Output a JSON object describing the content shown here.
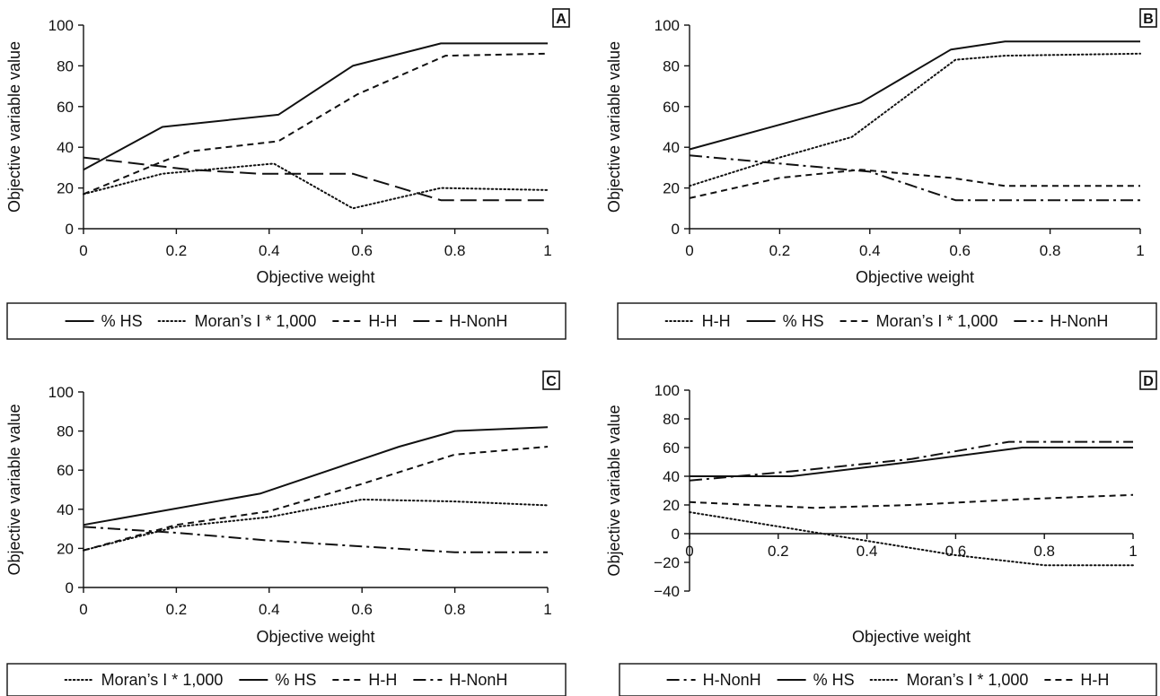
{
  "chart_data": [
    {
      "type": "line",
      "panel_label": "A",
      "xlabel": "Objective weight",
      "ylabel": "Objective variable value",
      "xlim": [
        0,
        1
      ],
      "ylim": [
        0,
        100
      ],
      "xticks": [
        0,
        0.2,
        0.4,
        0.6,
        0.8,
        1
      ],
      "xtick_labels": [
        "0",
        "0.2",
        "0.4",
        "0.6",
        "0.8",
        "1"
      ],
      "yticks": [
        0,
        20,
        40,
        60,
        80,
        100
      ],
      "ytick_labels": [
        "0",
        "20",
        "40",
        "60",
        "80",
        "100"
      ],
      "legend_position": "bottom",
      "series": [
        {
          "name": "% HS",
          "style": "solid",
          "x": [
            0,
            0.17,
            0.42,
            0.58,
            0.77,
            1
          ],
          "values": [
            29,
            50,
            56,
            80,
            91,
            91
          ]
        },
        {
          "name": "Moran’s I * 1,000",
          "style": "dotted",
          "x": [
            0,
            0.17,
            0.41,
            0.58,
            0.77,
            1
          ],
          "values": [
            17,
            27,
            32,
            10,
            20,
            19
          ]
        },
        {
          "name": "H-H",
          "style": "dashed",
          "x": [
            0,
            0.17,
            0.23,
            0.42,
            0.59,
            0.78,
            1
          ],
          "values": [
            17,
            33,
            38,
            43,
            66,
            85,
            86
          ]
        },
        {
          "name": "H-NonH",
          "style": "longdash",
          "x": [
            0,
            0.23,
            0.38,
            0.58,
            0.77,
            1
          ],
          "values": [
            35,
            29,
            27,
            27,
            14,
            14
          ]
        }
      ]
    },
    {
      "type": "line",
      "panel_label": "B",
      "xlabel": "Objective weight",
      "ylabel": "Objective variable value",
      "xlim": [
        0,
        1
      ],
      "ylim": [
        0,
        100
      ],
      "xticks": [
        0,
        0.2,
        0.4,
        0.6,
        0.8,
        1
      ],
      "xtick_labels": [
        "0",
        "0.2",
        "0.4",
        "0.6",
        "0.8",
        "1"
      ],
      "yticks": [
        0,
        20,
        40,
        60,
        80,
        100
      ],
      "ytick_labels": [
        "0",
        "20",
        "40",
        "60",
        "80",
        "100"
      ],
      "legend_position": "bottom",
      "series": [
        {
          "name": "H-H",
          "style": "dotted",
          "x": [
            0,
            0.2,
            0.36,
            0.59,
            0.7,
            1
          ],
          "values": [
            21,
            35,
            45,
            83,
            85,
            86
          ]
        },
        {
          "name": "% HS",
          "style": "solid",
          "x": [
            0,
            0.38,
            0.58,
            0.7,
            1
          ],
          "values": [
            39,
            62,
            88,
            92,
            92
          ]
        },
        {
          "name": "Moran’s I * 1,000",
          "style": "dashed",
          "x": [
            0,
            0.2,
            0.38,
            0.58,
            0.7,
            1
          ],
          "values": [
            15,
            25,
            29,
            25,
            21,
            21
          ]
        },
        {
          "name": "H-NonH",
          "style": "dashdot",
          "x": [
            0,
            0.4,
            0.59,
            1
          ],
          "values": [
            36,
            28,
            14,
            14
          ]
        }
      ]
    },
    {
      "type": "line",
      "panel_label": "C",
      "xlabel": "Objective weight",
      "ylabel": "Objective variable value",
      "xlim": [
        0,
        1
      ],
      "ylim": [
        0,
        100
      ],
      "xticks": [
        0,
        0.2,
        0.4,
        0.6,
        0.8,
        1
      ],
      "xtick_labels": [
        "0",
        "0.2",
        "0.4",
        "0.6",
        "0.8",
        "1"
      ],
      "yticks": [
        0,
        20,
        40,
        60,
        80,
        100
      ],
      "ytick_labels": [
        "0",
        "20",
        "40",
        "60",
        "80",
        "100"
      ],
      "legend_position": "bottom",
      "series": [
        {
          "name": "Moran’s I * 1,000",
          "style": "dotted",
          "x": [
            0,
            0.2,
            0.4,
            0.6,
            0.8,
            1
          ],
          "values": [
            19,
            31,
            36,
            45,
            44,
            42
          ]
        },
        {
          "name": "% HS",
          "style": "solid",
          "x": [
            0,
            0.38,
            0.68,
            0.8,
            1
          ],
          "values": [
            32,
            48,
            72,
            80,
            82
          ]
        },
        {
          "name": "H-H",
          "style": "dashed",
          "x": [
            0,
            0.2,
            0.4,
            0.6,
            0.8,
            1
          ],
          "values": [
            19,
            32,
            39,
            53,
            68,
            72
          ]
        },
        {
          "name": "H-NonH",
          "style": "dashdot",
          "x": [
            0,
            0.2,
            0.4,
            0.6,
            0.8,
            1
          ],
          "values": [
            31,
            28,
            24,
            21,
            18,
            18
          ]
        }
      ]
    },
    {
      "type": "line",
      "panel_label": "D",
      "xlabel": "Objective weight",
      "ylabel": "Objective variable value",
      "xlim": [
        0,
        1
      ],
      "ylim": [
        -40,
        100
      ],
      "xticks": [
        0,
        0.2,
        0.4,
        0.6,
        0.8,
        1
      ],
      "xtick_labels": [
        "0",
        "0.2",
        "0.4",
        "0.6",
        "0.8",
        "1"
      ],
      "yticks": [
        -40,
        -20,
        0,
        20,
        40,
        60,
        80,
        100
      ],
      "ytick_labels": [
        "−40",
        "−20",
        "0",
        "20",
        "40",
        "60",
        "80",
        "100"
      ],
      "legend_position": "bottom",
      "series": [
        {
          "name": "H-NonH",
          "style": "dashdot",
          "x": [
            0,
            0.25,
            0.5,
            0.72,
            1
          ],
          "values": [
            37,
            44,
            52,
            64,
            64
          ]
        },
        {
          "name": "% HS",
          "style": "solid",
          "x": [
            0,
            0.23,
            0.5,
            0.75,
            1
          ],
          "values": [
            40,
            40,
            50,
            60,
            60
          ]
        },
        {
          "name": "Moran’s I * 1,000",
          "style": "dotted",
          "x": [
            0,
            0.2,
            0.4,
            0.6,
            0.8,
            1
          ],
          "values": [
            15,
            5,
            -5,
            -15,
            -22,
            -22
          ]
        },
        {
          "name": "H-H",
          "style": "dashed",
          "x": [
            0,
            0.28,
            0.5,
            0.75,
            1
          ],
          "values": [
            22,
            18,
            20,
            24,
            27
          ]
        }
      ]
    }
  ]
}
